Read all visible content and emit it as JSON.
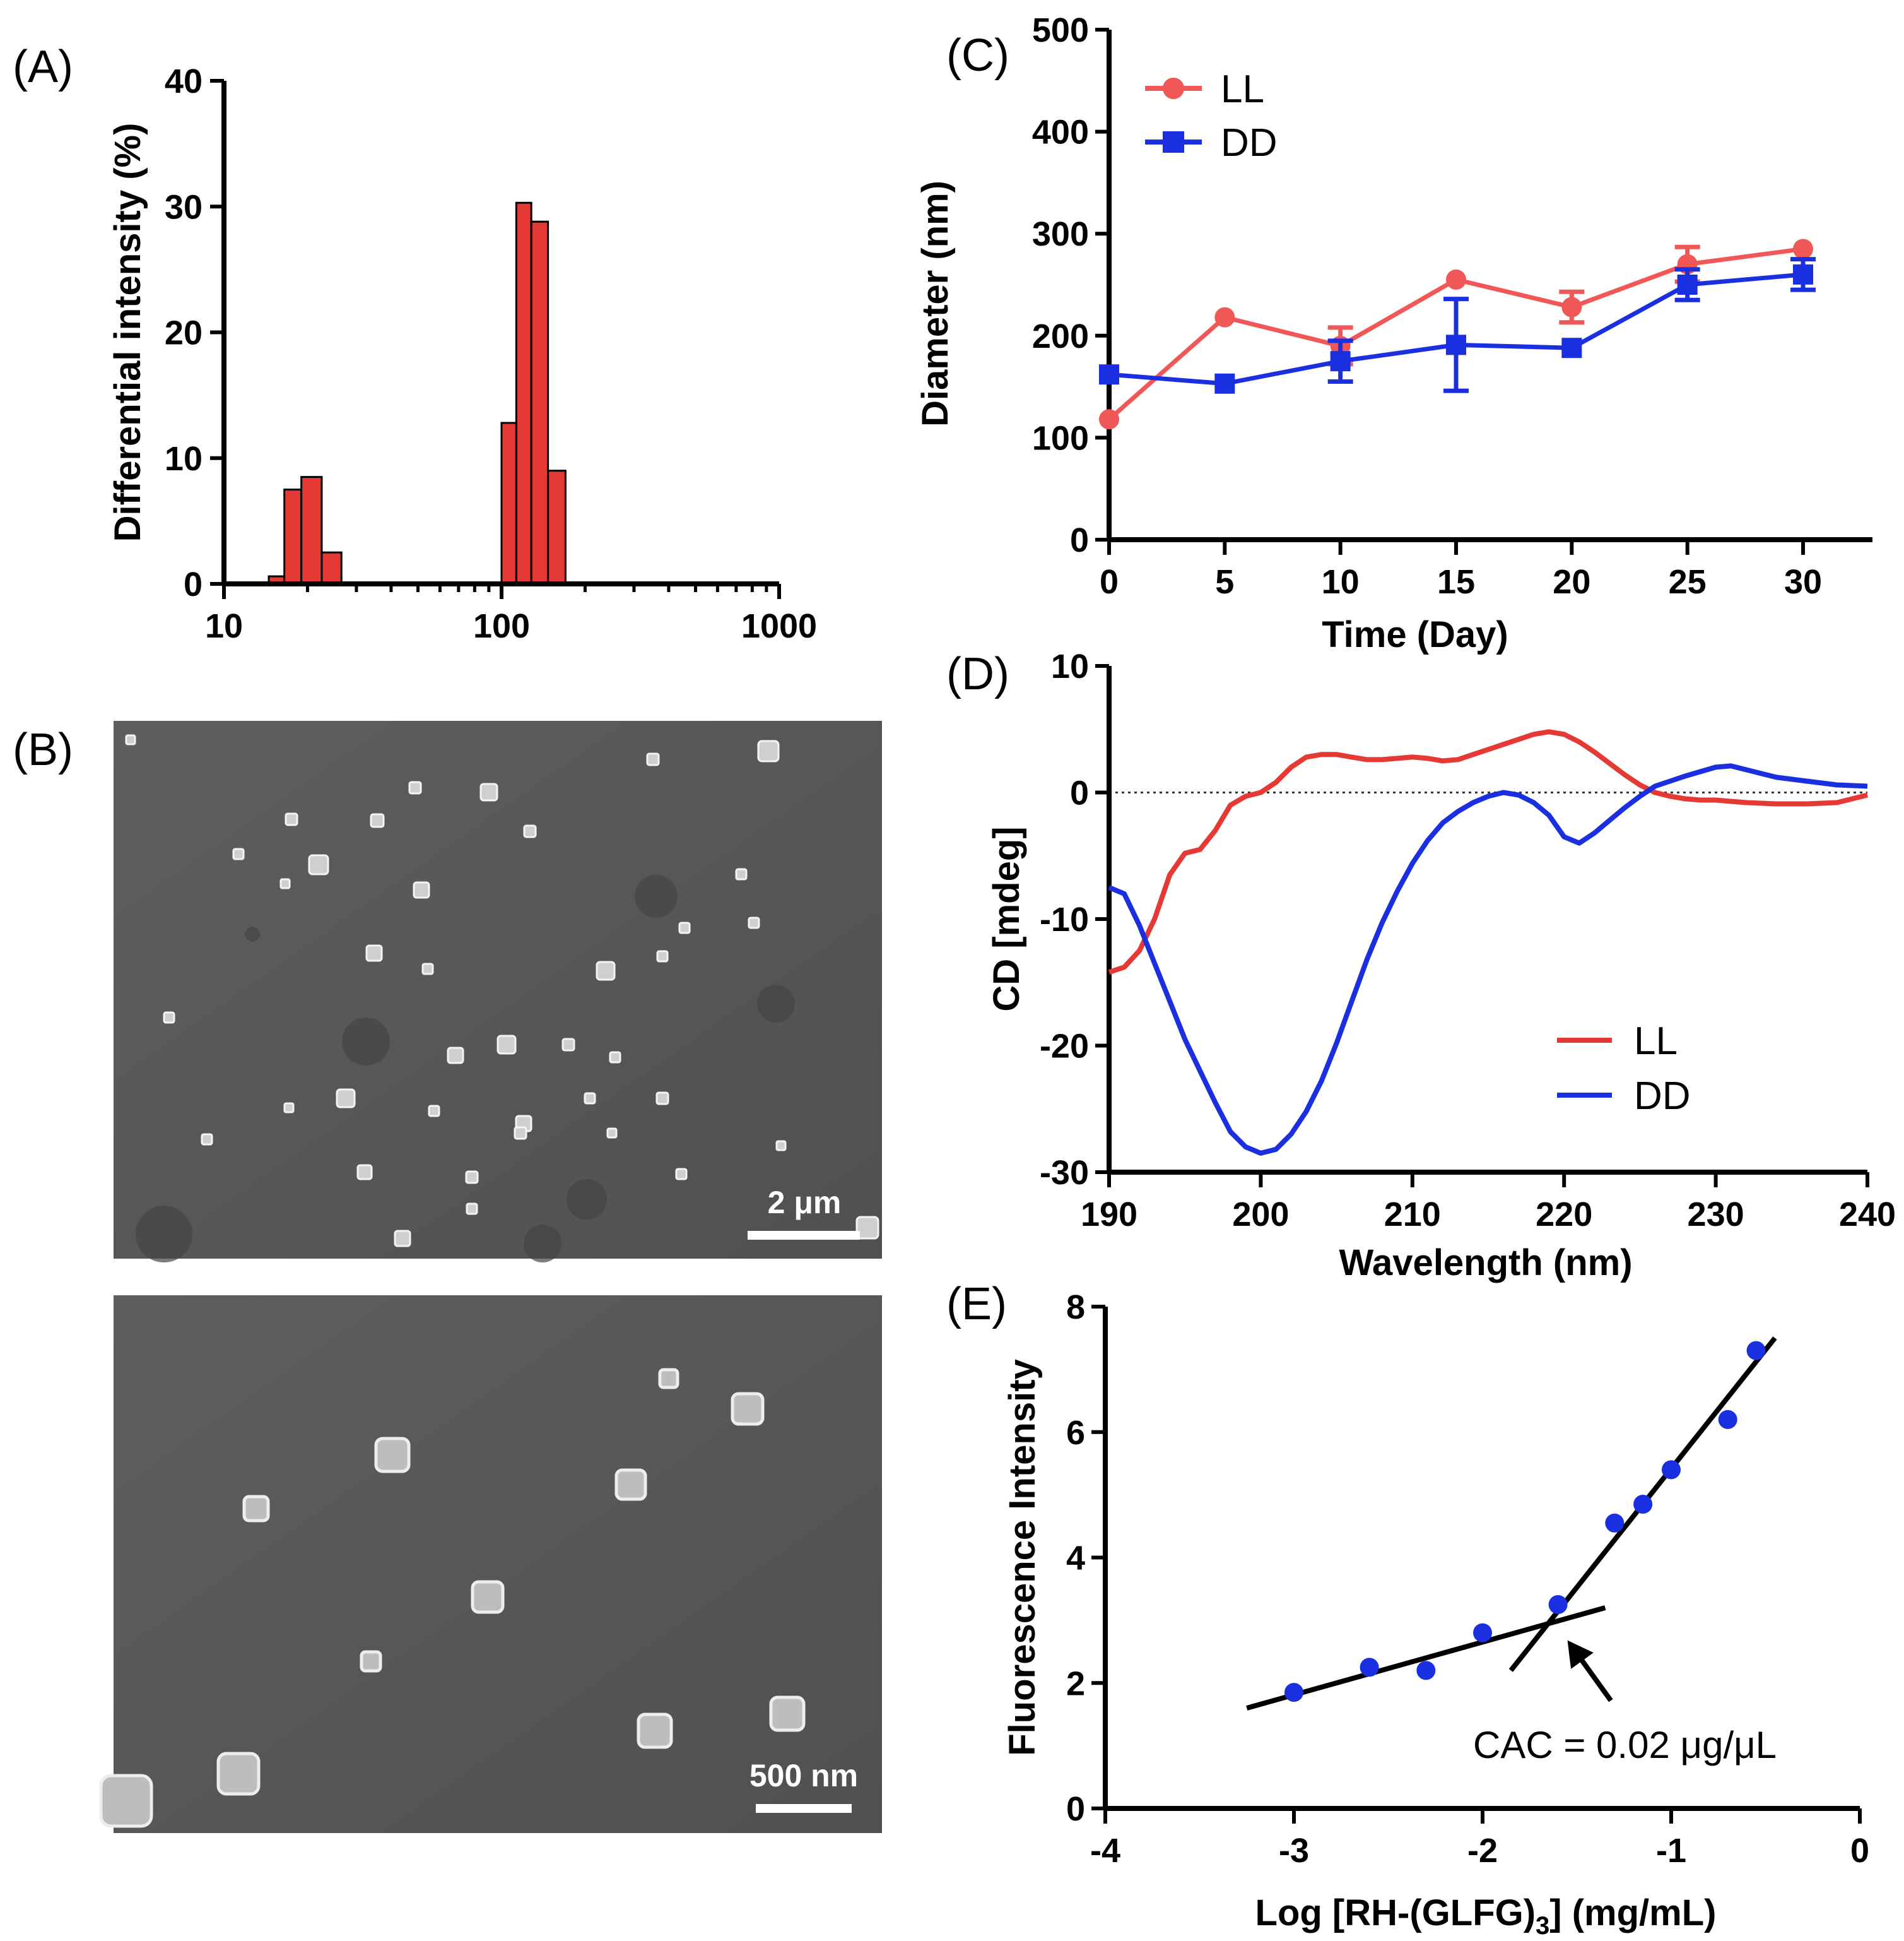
{
  "colors": {
    "red": "#e53935",
    "red_light": "#f25757",
    "blue": "#1a2fe0",
    "black": "#000000",
    "sem_background": "#5a5a5a"
  },
  "panels": {
    "A": {
      "label": "(A)"
    },
    "B": {
      "label": "(B)",
      "scalebar_top": "2 μm",
      "scalebar_bottom": "500 nm"
    },
    "C": {
      "label": "(C)"
    },
    "D": {
      "label": "(D)"
    },
    "E": {
      "label": "(E)",
      "annotation": "CAC = 0.02 μg/μL"
    }
  },
  "chart_data": [
    {
      "panel": "A",
      "type": "bar",
      "xscale": "log",
      "xlim": [
        10,
        1000
      ],
      "ylim": [
        0,
        40
      ],
      "xticks": [
        "10",
        "100",
        "1000"
      ],
      "yticks": [
        "0",
        "10",
        "20",
        "30",
        "40"
      ],
      "xlabel": "",
      "ylabel": "Differential intensity (%)",
      "bins": [
        {
          "x0": 14.5,
          "x1": 16.5,
          "value": 0.6
        },
        {
          "x0": 16.5,
          "x1": 19.0,
          "value": 7.5
        },
        {
          "x0": 19.0,
          "x1": 22.5,
          "value": 8.5
        },
        {
          "x0": 22.5,
          "x1": 26.5,
          "value": 2.5
        },
        {
          "x0": 100,
          "x1": 113,
          "value": 12.8
        },
        {
          "x0": 113,
          "x1": 128,
          "value": 30.3
        },
        {
          "x0": 128,
          "x1": 147,
          "value": 28.8
        },
        {
          "x0": 147,
          "x1": 170,
          "value": 9.0
        }
      ]
    },
    {
      "panel": "C",
      "type": "line",
      "xlim": [
        0,
        33
      ],
      "ylim": [
        0,
        500
      ],
      "xticks": [
        0,
        5,
        10,
        15,
        20,
        25,
        30
      ],
      "yticks": [
        0,
        100,
        200,
        300,
        400,
        500
      ],
      "xlabel": "Time (Day)",
      "ylabel": "Diameter (nm)",
      "x": [
        0,
        5,
        10,
        15,
        20,
        25,
        30
      ],
      "series": [
        {
          "name": "LL",
          "marker": "circle",
          "values": [
            118,
            218,
            190,
            255,
            228,
            270,
            285
          ],
          "errors": [
            0,
            0,
            18,
            0,
            15,
            17,
            0
          ]
        },
        {
          "name": "DD",
          "marker": "square",
          "values": [
            162,
            153,
            175,
            191,
            188,
            250,
            260
          ],
          "errors": [
            0,
            0,
            20,
            45,
            0,
            15,
            15
          ]
        }
      ]
    },
    {
      "panel": "D",
      "type": "line",
      "xlim": [
        190,
        240
      ],
      "ylim": [
        -30,
        10
      ],
      "xticks": [
        190,
        200,
        210,
        220,
        230,
        240
      ],
      "yticks": [
        -30,
        -20,
        -10,
        0,
        10
      ],
      "xlabel": "Wavelength (nm)",
      "ylabel": "CD [mdeg]",
      "series": [
        {
          "name": "LL",
          "x": [
            190,
            191,
            192,
            193,
            194,
            195,
            196,
            197,
            198,
            199,
            200,
            201,
            202,
            203,
            204,
            205,
            206,
            207,
            208,
            209,
            210,
            211,
            212,
            213,
            214,
            215,
            216,
            217,
            218,
            219,
            220,
            221,
            222,
            223,
            224,
            225,
            226,
            227,
            228,
            229,
            230,
            232,
            234,
            236,
            238,
            240
          ],
          "values": [
            -14.2,
            -13.8,
            -12.5,
            -10,
            -6.5,
            -4.8,
            -4.5,
            -3,
            -1,
            -0.3,
            0,
            0.8,
            2,
            2.8,
            3,
            3,
            2.8,
            2.6,
            2.6,
            2.7,
            2.8,
            2.7,
            2.5,
            2.6,
            3,
            3.4,
            3.8,
            4.2,
            4.6,
            4.8,
            4.6,
            4,
            3.2,
            2.3,
            1.4,
            0.6,
            0,
            -0.3,
            -0.5,
            -0.6,
            -0.6,
            -0.8,
            -0.9,
            -0.9,
            -0.8,
            -0.2
          ]
        },
        {
          "name": "DD",
          "x": [
            190,
            191,
            192,
            193,
            194,
            195,
            196,
            197,
            198,
            199,
            200,
            201,
            202,
            203,
            204,
            205,
            206,
            207,
            208,
            209,
            210,
            211,
            212,
            213,
            214,
            215,
            216,
            217,
            218,
            219,
            220,
            221,
            222,
            223,
            224,
            225,
            226,
            228,
            230,
            231,
            232,
            234,
            236,
            238,
            240
          ],
          "values": [
            -7.5,
            -8,
            -10.5,
            -13.5,
            -16.5,
            -19.5,
            -22,
            -24.5,
            -26.8,
            -28,
            -28.5,
            -28.2,
            -27,
            -25.2,
            -22.8,
            -19.8,
            -16.5,
            -13.2,
            -10.3,
            -7.8,
            -5.6,
            -3.8,
            -2.4,
            -1.5,
            -0.8,
            -0.3,
            0,
            -0.2,
            -0.8,
            -1.8,
            -3.5,
            -4,
            -3.2,
            -2.2,
            -1.2,
            -0.3,
            0.5,
            1.3,
            2,
            2.1,
            1.8,
            1.2,
            0.9,
            0.6,
            0.5
          ]
        }
      ],
      "reference_line": 0
    },
    {
      "panel": "E",
      "type": "scatter",
      "xlim": [
        -4,
        0
      ],
      "ylim": [
        0,
        8
      ],
      "xticks": [
        -4,
        -3,
        -2,
        -1,
        0
      ],
      "yticks": [
        0,
        2,
        4,
        6,
        8
      ],
      "xlabel": "Log [RH-(GLFG)3] (mg/mL)",
      "ylabel": "Fluorescence Intensity",
      "points": {
        "x": [
          -3.0,
          -2.6,
          -2.3,
          -2.0,
          -1.6,
          -1.3,
          -1.15,
          -1.0,
          -0.7,
          -0.55
        ],
        "y": [
          1.85,
          2.25,
          2.2,
          2.8,
          3.25,
          4.55,
          4.85,
          5.4,
          6.2,
          7.3
        ]
      },
      "fit_lines": [
        {
          "x": [
            -3.25,
            -1.35
          ],
          "y": [
            1.6,
            3.2
          ]
        },
        {
          "x": [
            -1.85,
            -0.45
          ],
          "y": [
            2.2,
            7.5
          ]
        }
      ],
      "arrow": {
        "from": [
          -1.32,
          1.72
        ],
        "to": [
          -1.55,
          2.68
        ]
      }
    }
  ]
}
